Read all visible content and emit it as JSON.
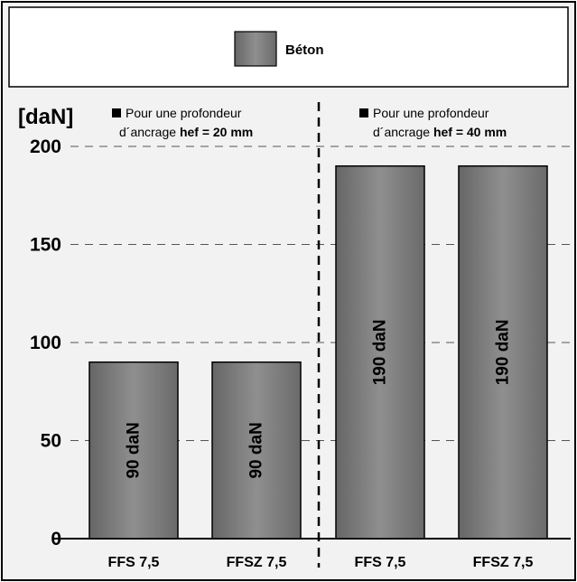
{
  "chart_data": {
    "type": "bar",
    "ylabel": "[daN]",
    "ylim": [
      0,
      200
    ],
    "yticks": [
      0,
      50,
      100,
      150,
      200
    ],
    "grid": true,
    "legend": {
      "position": "top-center",
      "entries": [
        {
          "name": "Béton",
          "color": "#7a7a7a"
        }
      ]
    },
    "categories": [
      "FFS 7,5",
      "FFSZ 7,5",
      "FFS 7,5",
      "FFSZ 7,5"
    ],
    "series": [
      {
        "name": "Béton",
        "values": [
          90,
          90,
          190,
          190
        ],
        "data_labels": [
          "90 daN",
          "90 daN",
          "190 daN",
          "190 daN"
        ]
      }
    ],
    "groups": [
      {
        "line1": "Pour une profondeur",
        "line2_prefix": "d´ancrage ",
        "line2_bold": "hef = 20 mm",
        "categories": [
          0,
          1
        ]
      },
      {
        "line1": "Pour une profondeur",
        "line2_prefix": "d´ancrage ",
        "line2_bold": "hef = 40 mm",
        "categories": [
          2,
          3
        ]
      }
    ],
    "colors": {
      "bar": "#7a7a7a",
      "bar_light": "#8f8f8f",
      "bar_dark": "#666666",
      "background": "#f2f2f2"
    }
  }
}
